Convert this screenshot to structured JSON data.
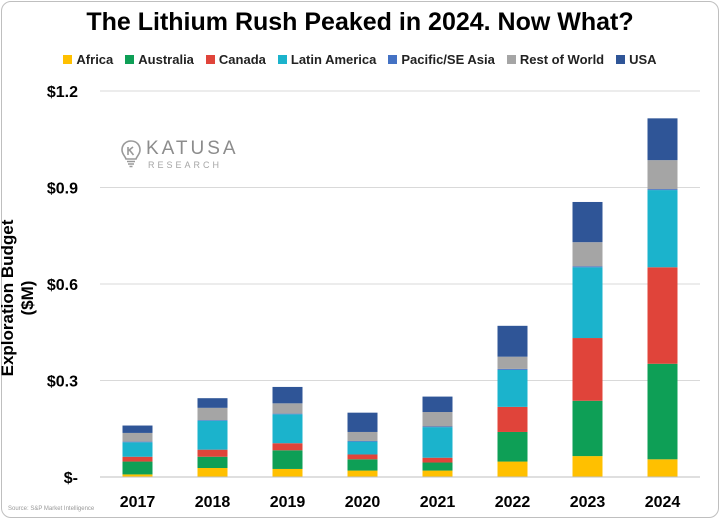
{
  "chart_data": {
    "type": "bar",
    "stacked": true,
    "title": "The Lithium Rush Peaked in 2024. Now What?",
    "ylabel": "Exploration Budget ($M)",
    "xlabel": "",
    "ylim": [
      0,
      1.2
    ],
    "yticks": [
      {
        "value": 0,
        "label": "$-"
      },
      {
        "value": 0.3,
        "label": "$0.3"
      },
      {
        "value": 0.6,
        "label": "$0.6"
      },
      {
        "value": 0.9,
        "label": "$0.9"
      },
      {
        "value": 1.2,
        "label": "$1.2"
      }
    ],
    "grid": true,
    "legend_position": "top",
    "categories": [
      "2017",
      "2018",
      "2019",
      "2020",
      "2021",
      "2022",
      "2023",
      "2024"
    ],
    "series": [
      {
        "name": "Africa",
        "color": "#FFC000",
        "values": [
          0.008,
          0.028,
          0.025,
          0.02,
          0.02,
          0.048,
          0.065,
          0.055
        ]
      },
      {
        "name": "Australia",
        "color": "#0E9F56",
        "values": [
          0.04,
          0.035,
          0.058,
          0.035,
          0.025,
          0.092,
          0.172,
          0.297
        ]
      },
      {
        "name": "Canada",
        "color": "#E0443A",
        "values": [
          0.015,
          0.022,
          0.022,
          0.015,
          0.015,
          0.078,
          0.195,
          0.3
        ]
      },
      {
        "name": "Latin America",
        "color": "#1BB3CC",
        "values": [
          0.045,
          0.09,
          0.09,
          0.04,
          0.095,
          0.115,
          0.22,
          0.24
        ]
      },
      {
        "name": "Pacific/SE Asia",
        "color": "#4472C4",
        "values": [
          0.002,
          0.002,
          0.002,
          0.002,
          0.002,
          0.003,
          0.003,
          0.003
        ]
      },
      {
        "name": "Rest of World",
        "color": "#A5A5A5",
        "values": [
          0.027,
          0.038,
          0.032,
          0.028,
          0.045,
          0.038,
          0.075,
          0.09
        ]
      },
      {
        "name": "USA",
        "color": "#2F5597",
        "values": [
          0.023,
          0.03,
          0.051,
          0.06,
          0.048,
          0.096,
          0.125,
          0.13
        ]
      }
    ]
  },
  "watermark": {
    "brand": "KATUSA",
    "sub": "RESEARCH"
  },
  "source": "Source: S&P Market Intelligence"
}
